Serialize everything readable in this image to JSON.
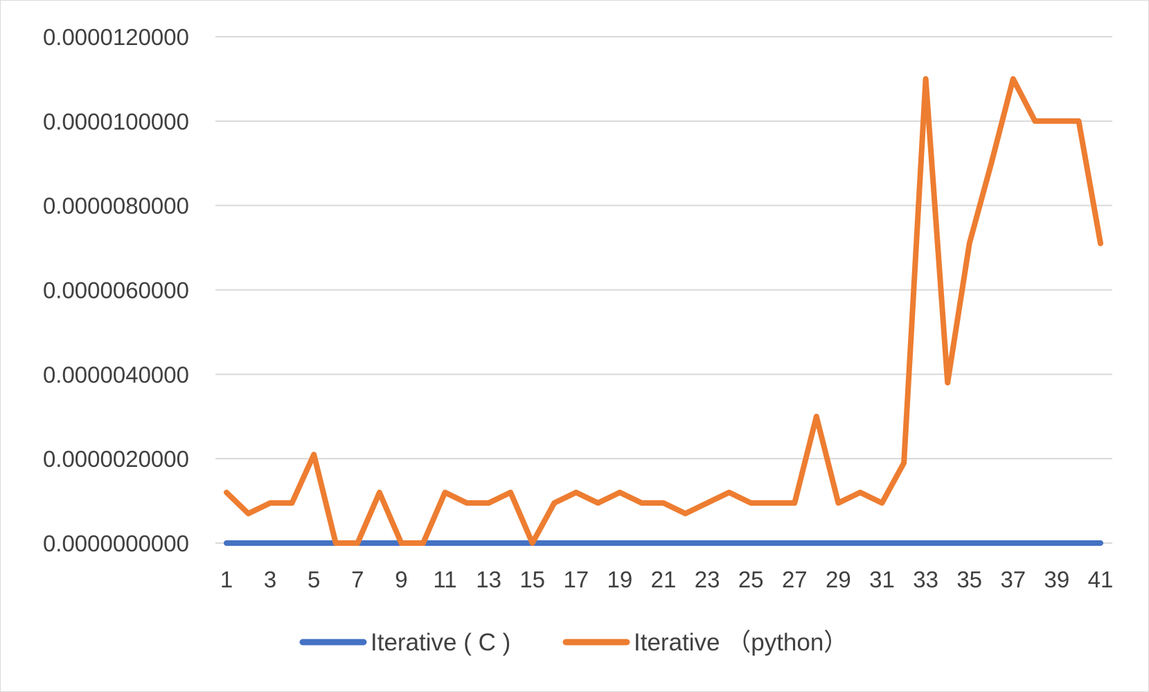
{
  "chart_data": {
    "type": "line",
    "title": "",
    "xlabel": "",
    "ylabel": "",
    "x": [
      1,
      2,
      3,
      4,
      5,
      6,
      7,
      8,
      9,
      10,
      11,
      12,
      13,
      14,
      15,
      16,
      17,
      18,
      19,
      20,
      21,
      22,
      23,
      24,
      25,
      26,
      27,
      28,
      29,
      30,
      31,
      32,
      33,
      34,
      35,
      36,
      37,
      38,
      39,
      40,
      41
    ],
    "x_tick_labels": [
      "1",
      "3",
      "5",
      "7",
      "9",
      "11",
      "13",
      "15",
      "17",
      "19",
      "21",
      "23",
      "25",
      "27",
      "29",
      "31",
      "33",
      "35",
      "37",
      "39",
      "41"
    ],
    "y_tick_labels": [
      "0.0000000000",
      "0.0000020000",
      "0.0000040000",
      "0.0000060000",
      "0.0000080000",
      "0.0000100000",
      "0.0000120000"
    ],
    "y_ticks": [
      0,
      2e-06,
      4e-06,
      6e-06,
      8e-06,
      1e-05,
      1.2e-05
    ],
    "ylim": [
      0,
      1.2e-05
    ],
    "grid": "horizontal",
    "legend_position": "bottom",
    "series": [
      {
        "name": "Iterative ( C )",
        "color": "#4472c4",
        "values": [
          0,
          0,
          0,
          0,
          0,
          0,
          0,
          0,
          0,
          0,
          0,
          0,
          0,
          0,
          0,
          0,
          0,
          0,
          0,
          0,
          0,
          0,
          0,
          0,
          0,
          0,
          0,
          0,
          0,
          0,
          0,
          0,
          0,
          0,
          0,
          0,
          0,
          0,
          0,
          0,
          0
        ]
      },
      {
        "name": "Iterative （python）",
        "color": "#ed7d31",
        "values": [
          1.2e-06,
          7e-07,
          9.5e-07,
          9.5e-07,
          2.1e-06,
          0,
          0,
          1.2e-06,
          0,
          0,
          1.2e-06,
          9.5e-07,
          9.5e-07,
          1.2e-06,
          0,
          9.5e-07,
          1.2e-06,
          9.5e-07,
          1.2e-06,
          9.5e-07,
          9.5e-07,
          7e-07,
          9.5e-07,
          1.2e-06,
          9.5e-07,
          9.5e-07,
          9.5e-07,
          3e-06,
          9.5e-07,
          1.2e-06,
          9.5e-07,
          1.9e-06,
          1.1e-05,
          3.8e-06,
          7.1e-06,
          9e-06,
          1.1e-05,
          1e-05,
          1e-05,
          1e-05,
          7.1e-06
        ]
      }
    ]
  }
}
